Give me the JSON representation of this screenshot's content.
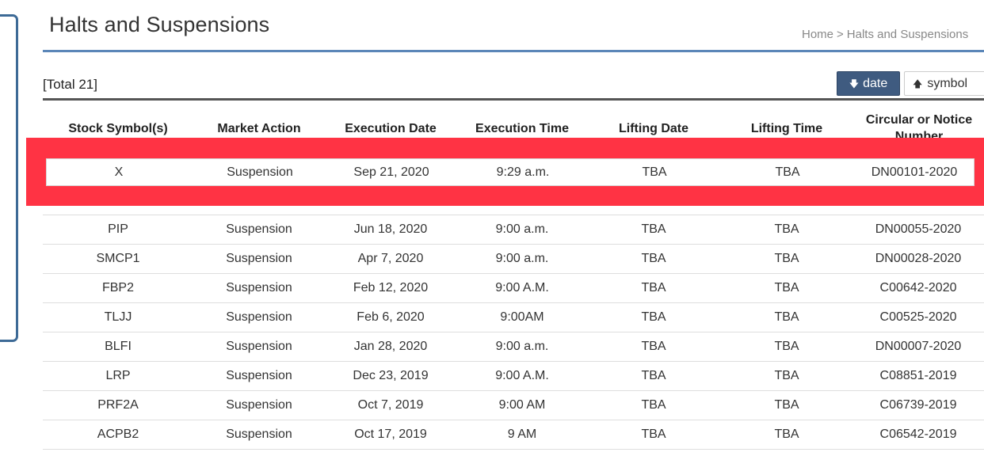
{
  "page": {
    "title": "Halts and Suspensions",
    "breadcrumb": {
      "home": "Home",
      "separator": ">",
      "current": "Halts and Suspensions"
    }
  },
  "toolbar": {
    "total_label": "[Total 21]",
    "sort_date_label": "date",
    "sort_date_icon": "arrow-down-icon",
    "sort_symbol_label": "symbol",
    "sort_symbol_icon": "arrow-up-icon",
    "active_sort": "date",
    "colors": {
      "active_button": "#3f5b80",
      "title_rule": "#5b86b8",
      "highlight": "#ff3344"
    }
  },
  "table": {
    "columns": [
      "Stock Symbol(s)",
      "Market Action",
      "Execution Date",
      "Execution Time",
      "Lifting Date",
      "Lifting Time",
      "Circular or Notice Number"
    ],
    "highlighted_row": [
      "X",
      "Suspension",
      "Sep 21, 2020",
      "9:29 a.m.",
      "TBA",
      "TBA",
      "DN00101-2020"
    ],
    "rows": [
      [
        "PIP",
        "Suspension",
        "Jun 18, 2020",
        "9:00 a.m.",
        "TBA",
        "TBA",
        "DN00055-2020"
      ],
      [
        "SMCP1",
        "Suspension",
        "Apr 7, 2020",
        "9:00 a.m.",
        "TBA",
        "TBA",
        "DN00028-2020"
      ],
      [
        "FBP2",
        "Suspension",
        "Feb 12, 2020",
        "9:00 A.M.",
        "TBA",
        "TBA",
        "C00642-2020"
      ],
      [
        "TLJJ",
        "Suspension",
        "Feb 6, 2020",
        "9:00AM",
        "TBA",
        "TBA",
        "C00525-2020"
      ],
      [
        "BLFI",
        "Suspension",
        "Jan 28, 2020",
        "9:00 a.m.",
        "TBA",
        "TBA",
        "DN00007-2020"
      ],
      [
        "LRP",
        "Suspension",
        "Dec 23, 2019",
        "9:00 A.M.",
        "TBA",
        "TBA",
        "C08851-2019"
      ],
      [
        "PRF2A",
        "Suspension",
        "Oct 7, 2019",
        "9:00 AM",
        "TBA",
        "TBA",
        "C06739-2019"
      ],
      [
        "ACPB2",
        "Suspension",
        "Oct 17, 2019",
        "9 AM",
        "TBA",
        "TBA",
        "C06542-2019"
      ]
    ]
  }
}
